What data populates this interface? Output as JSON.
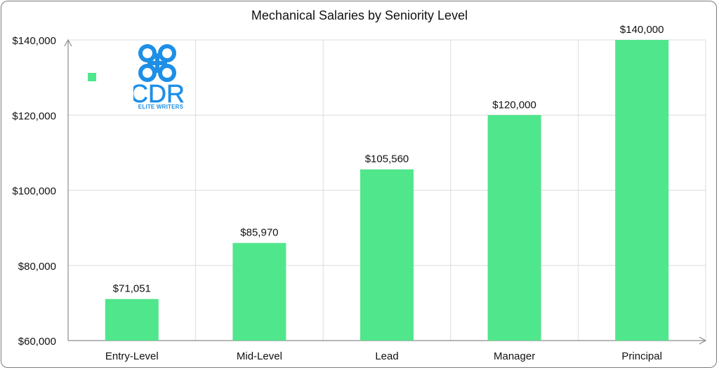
{
  "chart_data": {
    "type": "bar",
    "title": "Mechanical Salaries by Seniority Level",
    "categories": [
      "Entry-Level",
      "Mid-Level",
      "Lead",
      "Manager",
      "Principal"
    ],
    "values": [
      71051,
      85970,
      105560,
      120000,
      140000
    ],
    "data_labels": [
      "$71,051",
      "$85,970",
      "$105,560",
      "$120,000",
      "$140,000"
    ],
    "ylim": [
      60000,
      140000
    ],
    "yticks": [
      60000,
      80000,
      100000,
      120000,
      140000
    ],
    "ytick_labels": [
      "$60,000",
      "$80,000",
      "$100,000",
      "$120,000",
      "$140,000"
    ],
    "xlabel": "",
    "ylabel": "",
    "grid": true,
    "legend": "top-left",
    "colors": {
      "bar": "#50e68c",
      "grid": "#dcdcdc",
      "axis": "#8c8c8c",
      "logo": "#1e8fe6"
    }
  },
  "logo": {
    "text": "CDR",
    "subtitle": "ELITE WRITERS"
  }
}
